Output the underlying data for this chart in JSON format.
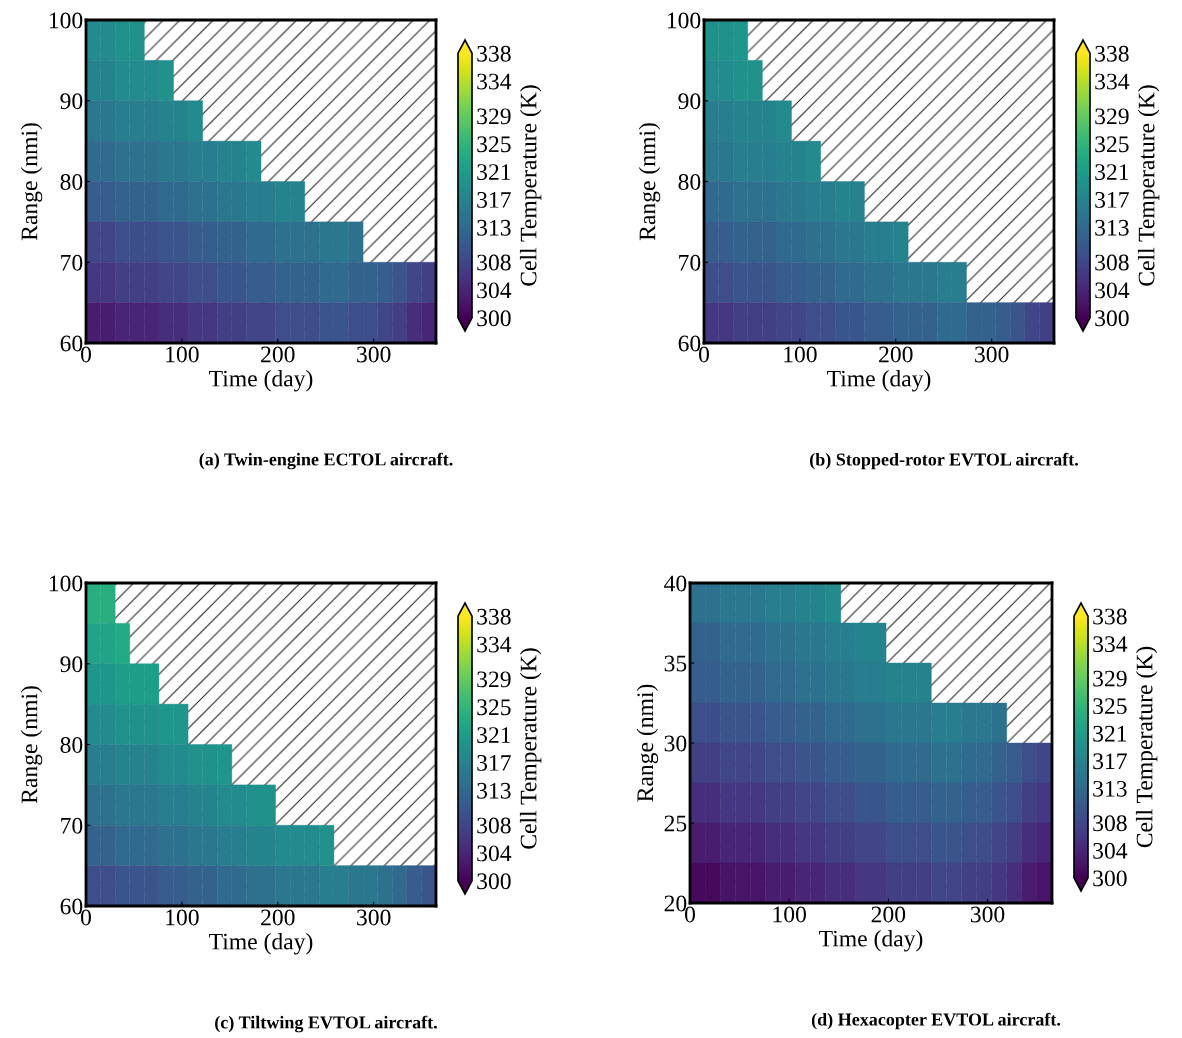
{
  "chart_data": [
    {
      "type": "heatmap",
      "title": "(a) Twin-engine ECTOL aircraft.",
      "xlabel": "Time (day)",
      "ylabel": "Range (nmi)",
      "clabel": "Cell Temperature (K)",
      "xlim": [
        0,
        365
      ],
      "xticks": [
        0,
        100,
        200,
        300
      ],
      "ylim": [
        60,
        100
      ],
      "yticks": [
        60,
        70,
        80,
        90,
        100
      ],
      "clim": [
        300,
        338
      ],
      "cticks": [
        300,
        304,
        308,
        313,
        317,
        321,
        325,
        329,
        334,
        338
      ],
      "cells": [
        [
          318,
          318,
          319,
          319,
          null,
          null,
          null,
          null,
          null,
          null,
          null,
          null,
          null,
          null,
          null,
          null,
          null,
          null,
          null,
          null,
          null,
          null,
          null,
          null
        ],
        [
          317,
          317,
          318,
          318,
          318,
          319,
          null,
          null,
          null,
          null,
          null,
          null,
          null,
          null,
          null,
          null,
          null,
          null,
          null,
          null,
          null,
          null,
          null,
          null
        ],
        [
          315,
          315,
          316,
          316,
          316,
          317,
          317,
          318,
          null,
          null,
          null,
          null,
          null,
          null,
          null,
          null,
          null,
          null,
          null,
          null,
          null,
          null,
          null,
          null
        ],
        [
          313,
          313,
          314,
          314,
          314,
          315,
          315,
          316,
          316,
          317,
          317,
          318,
          null,
          null,
          null,
          null,
          null,
          null,
          null,
          null,
          null,
          null,
          null,
          null
        ],
        [
          311,
          311,
          312,
          312,
          312,
          313,
          313,
          314,
          314,
          315,
          315,
          316,
          316,
          317,
          317,
          null,
          null,
          null,
          null,
          null,
          null,
          null,
          null,
          null
        ],
        [
          308,
          308,
          309,
          309,
          309,
          310,
          310,
          311,
          311,
          312,
          312,
          313,
          313,
          314,
          314,
          314,
          315,
          315,
          314,
          null,
          null,
          null,
          null,
          null
        ],
        [
          306,
          306,
          307,
          307,
          307,
          308,
          308,
          309,
          309,
          310,
          310,
          311,
          311,
          312,
          312,
          312,
          313,
          313,
          312,
          312,
          311,
          310,
          308,
          307
        ],
        [
          303,
          303,
          304,
          304,
          304,
          305,
          305,
          306,
          306,
          307,
          307,
          308,
          308,
          309,
          309,
          309,
          310,
          310,
          309,
          309,
          308,
          307,
          305,
          304
        ]
      ]
    },
    {
      "type": "heatmap",
      "title": "(b) Stopped-rotor EVTOL aircraft.",
      "xlabel": "Time (day)",
      "ylabel": "Range (nmi)",
      "clabel": "Cell Temperature (K)",
      "xlim": [
        0,
        365
      ],
      "xticks": [
        0,
        100,
        200,
        300
      ],
      "ylim": [
        60,
        100
      ],
      "yticks": [
        60,
        70,
        80,
        90,
        100
      ],
      "clim": [
        300,
        338
      ],
      "cticks": [
        300,
        304,
        308,
        313,
        317,
        321,
        325,
        329,
        334,
        338
      ],
      "cells": [
        [
          319,
          319,
          320,
          null,
          null,
          null,
          null,
          null,
          null,
          null,
          null,
          null,
          null,
          null,
          null,
          null,
          null,
          null,
          null,
          null,
          null,
          null,
          null,
          null
        ],
        [
          318,
          318,
          319,
          319,
          null,
          null,
          null,
          null,
          null,
          null,
          null,
          null,
          null,
          null,
          null,
          null,
          null,
          null,
          null,
          null,
          null,
          null,
          null,
          null
        ],
        [
          316,
          316,
          317,
          317,
          317,
          318,
          null,
          null,
          null,
          null,
          null,
          null,
          null,
          null,
          null,
          null,
          null,
          null,
          null,
          null,
          null,
          null,
          null,
          null
        ],
        [
          315,
          315,
          316,
          316,
          316,
          317,
          317,
          318,
          null,
          null,
          null,
          null,
          null,
          null,
          null,
          null,
          null,
          null,
          null,
          null,
          null,
          null,
          null,
          null
        ],
        [
          313,
          313,
          314,
          314,
          314,
          315,
          315,
          316,
          316,
          317,
          317,
          null,
          null,
          null,
          null,
          null,
          null,
          null,
          null,
          null,
          null,
          null,
          null,
          null
        ],
        [
          311,
          311,
          312,
          312,
          312,
          313,
          313,
          314,
          314,
          315,
          315,
          316,
          316,
          317,
          null,
          null,
          null,
          null,
          null,
          null,
          null,
          null,
          null,
          null
        ],
        [
          309,
          309,
          310,
          310,
          310,
          311,
          311,
          312,
          312,
          313,
          313,
          314,
          314,
          315,
          315,
          315,
          316,
          316,
          null,
          null,
          null,
          null,
          null,
          null
        ],
        [
          306,
          306,
          307,
          307,
          307,
          308,
          308,
          309,
          309,
          310,
          310,
          311,
          311,
          312,
          312,
          312,
          313,
          313,
          312,
          312,
          311,
          310,
          308,
          307
        ]
      ]
    },
    {
      "type": "heatmap",
      "title": "(c) Tiltwing EVTOL aircraft.",
      "xlabel": "Time (day)",
      "ylabel": "Range (nmi)",
      "clabel": "Cell Temperature (K)",
      "xlim": [
        0,
        365
      ],
      "xticks": [
        0,
        100,
        200,
        300
      ],
      "ylim": [
        60,
        100
      ],
      "yticks": [
        60,
        70,
        80,
        90,
        100
      ],
      "clim": [
        300,
        338
      ],
      "cticks": [
        300,
        304,
        308,
        313,
        317,
        321,
        325,
        329,
        334,
        338
      ],
      "cells": [
        [
          324,
          324,
          null,
          null,
          null,
          null,
          null,
          null,
          null,
          null,
          null,
          null,
          null,
          null,
          null,
          null,
          null,
          null,
          null,
          null,
          null,
          null,
          null,
          null
        ],
        [
          322,
          322,
          323,
          null,
          null,
          null,
          null,
          null,
          null,
          null,
          null,
          null,
          null,
          null,
          null,
          null,
          null,
          null,
          null,
          null,
          null,
          null,
          null,
          null
        ],
        [
          320,
          320,
          321,
          321,
          321,
          null,
          null,
          null,
          null,
          null,
          null,
          null,
          null,
          null,
          null,
          null,
          null,
          null,
          null,
          null,
          null,
          null,
          null,
          null
        ],
        [
          318,
          318,
          319,
          319,
          319,
          320,
          320,
          null,
          null,
          null,
          null,
          null,
          null,
          null,
          null,
          null,
          null,
          null,
          null,
          null,
          null,
          null,
          null,
          null
        ],
        [
          316,
          316,
          317,
          317,
          317,
          318,
          318,
          319,
          319,
          320,
          null,
          null,
          null,
          null,
          null,
          null,
          null,
          null,
          null,
          null,
          null,
          null,
          null,
          null
        ],
        [
          314,
          314,
          315,
          315,
          315,
          316,
          316,
          317,
          317,
          318,
          318,
          319,
          319,
          null,
          null,
          null,
          null,
          null,
          null,
          null,
          null,
          null,
          null,
          null
        ],
        [
          312,
          312,
          313,
          313,
          313,
          314,
          314,
          315,
          315,
          316,
          316,
          317,
          317,
          318,
          318,
          318,
          319,
          null,
          null,
          null,
          null,
          null,
          null,
          null
        ],
        [
          309,
          309,
          310,
          310,
          310,
          311,
          311,
          312,
          312,
          313,
          313,
          314,
          314,
          315,
          315,
          315,
          316,
          316,
          315,
          315,
          314,
          313,
          311,
          310
        ]
      ]
    },
    {
      "type": "heatmap",
      "title": "(d) Hexacopter EVTOL aircraft.",
      "xlabel": "Time (day)",
      "ylabel": "Range (nmi)",
      "clabel": "Cell Temperature (K)",
      "xlim": [
        0,
        365
      ],
      "xticks": [
        0,
        100,
        200,
        300
      ],
      "ylim": [
        20,
        40
      ],
      "yticks": [
        20,
        25,
        30,
        35,
        40
      ],
      "clim": [
        300,
        338
      ],
      "cticks": [
        300,
        304,
        308,
        313,
        317,
        321,
        325,
        329,
        334,
        338
      ],
      "cells": [
        [
          314,
          314,
          315,
          315,
          315,
          316,
          316,
          317,
          317,
          318,
          null,
          null,
          null,
          null,
          null,
          null,
          null,
          null,
          null,
          null,
          null,
          null,
          null,
          null
        ],
        [
          312,
          312,
          313,
          313,
          313,
          314,
          314,
          315,
          315,
          316,
          316,
          317,
          317,
          null,
          null,
          null,
          null,
          null,
          null,
          null,
          null,
          null,
          null,
          null
        ],
        [
          311,
          311,
          312,
          312,
          312,
          313,
          313,
          314,
          314,
          315,
          315,
          316,
          316,
          317,
          317,
          317,
          null,
          null,
          null,
          null,
          null,
          null,
          null,
          null
        ],
        [
          309,
          309,
          310,
          310,
          310,
          311,
          311,
          312,
          312,
          313,
          313,
          314,
          314,
          315,
          315,
          315,
          316,
          316,
          315,
          315,
          314,
          null,
          null,
          null
        ],
        [
          307,
          307,
          308,
          308,
          308,
          309,
          309,
          310,
          310,
          311,
          311,
          312,
          312,
          313,
          313,
          313,
          314,
          314,
          313,
          313,
          312,
          311,
          309,
          308
        ],
        [
          305,
          305,
          306,
          306,
          306,
          307,
          307,
          308,
          308,
          309,
          309,
          310,
          310,
          311,
          311,
          311,
          312,
          312,
          311,
          311,
          310,
          309,
          307,
          306
        ],
        [
          303,
          303,
          304,
          304,
          304,
          305,
          305,
          306,
          306,
          307,
          307,
          308,
          308,
          309,
          309,
          309,
          310,
          310,
          309,
          309,
          308,
          307,
          305,
          304
        ],
        [
          301,
          301,
          302,
          302,
          302,
          303,
          303,
          304,
          304,
          305,
          305,
          306,
          306,
          307,
          307,
          307,
          308,
          308,
          307,
          307,
          306,
          305,
          303,
          302
        ]
      ]
    }
  ]
}
